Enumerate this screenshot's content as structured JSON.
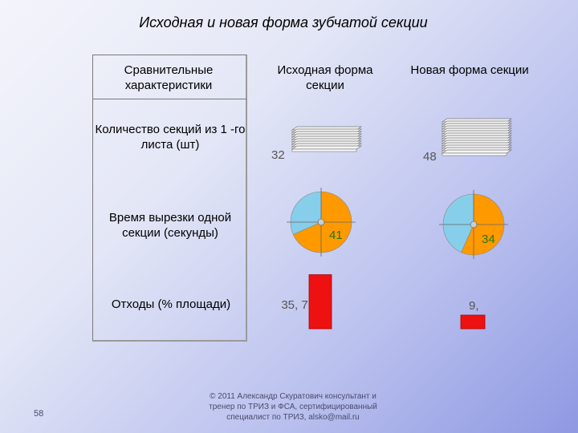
{
  "title": "Исходная и новая форма зубчатой секции",
  "headers": {
    "criteria": "Сравнительные характеристики",
    "original": "Исходная форма секции",
    "new": "Новая форма секции"
  },
  "rows": [
    {
      "label": "Количество секций из 1 -го листа (шт)",
      "original": "32",
      "new": "48"
    },
    {
      "label": "Время вырезки одной секции (секунды)",
      "original": "41",
      "new": "34"
    },
    {
      "label": "Отходы (% площади)",
      "original": "35, 7",
      "new": "9,"
    }
  ],
  "chart_data": [
    {
      "type": "pie",
      "name": "Время вырезки — исходная",
      "values": [
        41,
        19
      ],
      "colors": [
        "#ff9900",
        "#87ceeb"
      ]
    },
    {
      "type": "pie",
      "name": "Время вырезки — новая",
      "values": [
        34,
        26
      ],
      "colors": [
        "#ff9900",
        "#87ceeb"
      ]
    },
    {
      "type": "bar",
      "name": "Отходы",
      "categories": [
        "Исходная",
        "Новая"
      ],
      "values": [
        35.7,
        9
      ],
      "color": "#ee1111"
    }
  ],
  "footer": "© 2011 Александр Скуратович консультант и тренер по ТРИЗ и ФСА, сертифицированный специалист по ТРИЗ, alsko@mail.ru",
  "slide_number": "58",
  "colors": {
    "orange": "#ff9900",
    "sky": "#87ceeb",
    "red": "#ee1111"
  }
}
